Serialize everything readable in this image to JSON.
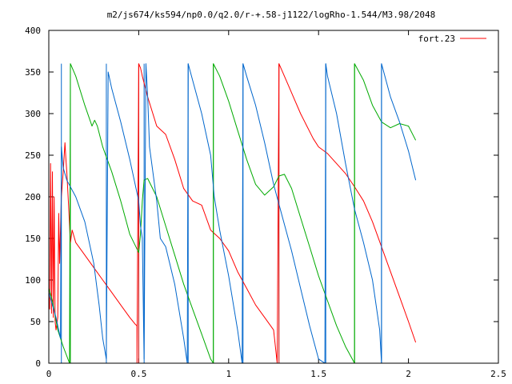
{
  "chart_data": {
    "type": "line",
    "title": "m2/js674/ks594/np0.0/q2.0/r-+.58-j1122/logRho-1.544/M3.98/2048",
    "xlim": [
      0,
      2.5
    ],
    "ylim": [
      0,
      400
    ],
    "x_ticks": [
      "0",
      "0.5",
      "1",
      "1.5",
      "2",
      "2.5"
    ],
    "x_tick_values": [
      0,
      0.5,
      1,
      1.5,
      2,
      2.5
    ],
    "y_ticks": [
      "0",
      "50",
      "100",
      "150",
      "200",
      "250",
      "300",
      "350",
      "400"
    ],
    "y_tick_values": [
      0,
      50,
      100,
      150,
      200,
      250,
      300,
      350,
      400
    ],
    "grid": false,
    "legend_position": "top-right",
    "legend": [
      "fort.23"
    ],
    "series": [
      {
        "name": "fort.23",
        "color": "#ff0000",
        "points": [
          [
            0.0,
            80
          ],
          [
            0.005,
            65
          ],
          [
            0.01,
            240
          ],
          [
            0.015,
            60
          ],
          [
            0.02,
            230
          ],
          [
            0.025,
            55
          ],
          [
            0.03,
            200
          ],
          [
            0.035,
            50
          ],
          [
            0.04,
            40
          ],
          [
            0.05,
            55
          ],
          [
            0.055,
            180
          ],
          [
            0.06,
            120
          ],
          [
            0.065,
            160
          ],
          [
            0.07,
            200
          ],
          [
            0.08,
            230
          ],
          [
            0.09,
            265
          ],
          [
            0.095,
            245
          ],
          [
            0.1,
            230
          ],
          [
            0.11,
            190
          ],
          [
            0.12,
            145
          ],
          [
            0.13,
            160
          ],
          [
            0.15,
            145
          ],
          [
            0.2,
            130
          ],
          [
            0.25,
            115
          ],
          [
            0.3,
            100
          ],
          [
            0.35,
            85
          ],
          [
            0.4,
            70
          ],
          [
            0.45,
            55
          ],
          [
            0.48,
            47
          ],
          [
            0.49,
            45
          ],
          [
            0.49,
            0
          ],
          [
            0.5,
            360
          ],
          [
            0.51,
            355
          ],
          [
            0.52,
            345
          ],
          [
            0.55,
            320
          ],
          [
            0.6,
            285
          ],
          [
            0.65,
            275
          ],
          [
            0.7,
            245
          ],
          [
            0.75,
            210
          ],
          [
            0.8,
            195
          ],
          [
            0.85,
            190
          ],
          [
            0.9,
            160
          ],
          [
            0.95,
            150
          ],
          [
            1.0,
            135
          ],
          [
            1.05,
            110
          ],
          [
            1.1,
            90
          ],
          [
            1.15,
            70
          ],
          [
            1.2,
            55
          ],
          [
            1.25,
            40
          ],
          [
            1.27,
            0
          ],
          [
            1.28,
            360
          ],
          [
            1.33,
            335
          ],
          [
            1.4,
            300
          ],
          [
            1.47,
            270
          ],
          [
            1.5,
            260
          ],
          [
            1.55,
            252
          ],
          [
            1.6,
            240
          ],
          [
            1.65,
            228
          ],
          [
            1.7,
            212
          ],
          [
            1.75,
            195
          ],
          [
            1.8,
            170
          ],
          [
            1.85,
            140
          ],
          [
            1.9,
            110
          ],
          [
            1.95,
            80
          ],
          [
            2.0,
            50
          ],
          [
            2.04,
            25
          ]
        ]
      },
      {
        "color": "#00aa00",
        "points": [
          [
            0.0,
            90
          ],
          [
            0.02,
            75
          ],
          [
            0.05,
            40
          ],
          [
            0.08,
            20
          ],
          [
            0.115,
            0
          ],
          [
            0.12,
            360
          ],
          [
            0.15,
            345
          ],
          [
            0.2,
            310
          ],
          [
            0.24,
            285
          ],
          [
            0.255,
            292
          ],
          [
            0.27,
            285
          ],
          [
            0.3,
            260
          ],
          [
            0.35,
            230
          ],
          [
            0.4,
            195
          ],
          [
            0.45,
            155
          ],
          [
            0.5,
            133
          ],
          [
            0.51,
            155
          ],
          [
            0.52,
            195
          ],
          [
            0.53,
            220
          ],
          [
            0.55,
            222
          ],
          [
            0.6,
            200
          ],
          [
            0.65,
            165
          ],
          [
            0.7,
            130
          ],
          [
            0.75,
            95
          ],
          [
            0.8,
            65
          ],
          [
            0.85,
            35
          ],
          [
            0.9,
            5
          ],
          [
            0.915,
            0
          ],
          [
            0.915,
            360
          ],
          [
            0.95,
            345
          ],
          [
            1.0,
            315
          ],
          [
            1.05,
            280
          ],
          [
            1.1,
            245
          ],
          [
            1.15,
            215
          ],
          [
            1.2,
            202
          ],
          [
            1.25,
            212
          ],
          [
            1.28,
            225
          ],
          [
            1.31,
            227
          ],
          [
            1.35,
            210
          ],
          [
            1.4,
            175
          ],
          [
            1.45,
            140
          ],
          [
            1.5,
            105
          ],
          [
            1.55,
            75
          ],
          [
            1.6,
            45
          ],
          [
            1.65,
            20
          ],
          [
            1.7,
            0
          ],
          [
            1.7,
            360
          ],
          [
            1.75,
            340
          ],
          [
            1.8,
            310
          ],
          [
            1.85,
            290
          ],
          [
            1.9,
            283
          ],
          [
            1.95,
            288
          ],
          [
            2.0,
            285
          ],
          [
            2.04,
            268
          ]
        ]
      },
      {
        "color": "#0066cc",
        "points": [
          [
            0.0,
            85
          ],
          [
            0.02,
            70
          ],
          [
            0.04,
            55
          ],
          [
            0.065,
            30
          ],
          [
            0.07,
            260
          ],
          [
            0.08,
            235
          ],
          [
            0.1,
            220
          ],
          [
            0.15,
            200
          ],
          [
            0.2,
            170
          ],
          [
            0.25,
            120
          ],
          [
            0.28,
            70
          ],
          [
            0.3,
            30
          ],
          [
            0.32,
            5
          ],
          [
            0.33,
            350
          ],
          [
            0.35,
            330
          ],
          [
            0.4,
            290
          ],
          [
            0.45,
            245
          ],
          [
            0.5,
            195
          ],
          [
            0.51,
            165
          ],
          [
            0.52,
            150
          ],
          [
            0.53,
            5
          ],
          [
            0.54,
            360
          ],
          [
            0.55,
            320
          ],
          [
            0.56,
            260
          ],
          [
            0.6,
            195
          ],
          [
            0.62,
            150
          ],
          [
            0.65,
            140
          ],
          [
            0.7,
            95
          ],
          [
            0.75,
            30
          ],
          [
            0.77,
            0
          ],
          [
            0.775,
            360
          ],
          [
            0.8,
            340
          ],
          [
            0.85,
            300
          ],
          [
            0.9,
            250
          ],
          [
            0.92,
            200
          ],
          [
            0.95,
            160
          ],
          [
            1.0,
            105
          ],
          [
            1.05,
            40
          ],
          [
            1.075,
            0
          ],
          [
            1.08,
            360
          ],
          [
            1.1,
            345
          ],
          [
            1.15,
            310
          ],
          [
            1.2,
            265
          ],
          [
            1.25,
            215
          ],
          [
            1.3,
            175
          ],
          [
            1.35,
            135
          ],
          [
            1.4,
            90
          ],
          [
            1.45,
            45
          ],
          [
            1.5,
            5
          ],
          [
            1.535,
            0
          ],
          [
            1.54,
            360
          ],
          [
            1.55,
            345
          ],
          [
            1.6,
            300
          ],
          [
            1.65,
            240
          ],
          [
            1.7,
            185
          ],
          [
            1.75,
            145
          ],
          [
            1.8,
            100
          ],
          [
            1.84,
            40
          ],
          [
            1.85,
            0
          ],
          [
            1.85,
            360
          ],
          [
            1.9,
            320
          ],
          [
            1.95,
            290
          ],
          [
            2.0,
            255
          ],
          [
            2.04,
            220
          ]
        ]
      }
    ],
    "verticals": [
      {
        "x": 0.07,
        "color": "#0066cc"
      },
      {
        "x": 0.12,
        "color": "#00aa00"
      },
      {
        "x": 0.32,
        "color": "#0066cc"
      },
      {
        "x": 0.5,
        "color": "#cc0000"
      },
      {
        "x": 0.53,
        "color": "#0066cc"
      },
      {
        "x": 0.775,
        "color": "#0066cc"
      },
      {
        "x": 0.915,
        "color": "#00aa00"
      },
      {
        "x": 1.08,
        "color": "#0066cc"
      },
      {
        "x": 1.28,
        "color": "#cc0000"
      },
      {
        "x": 1.54,
        "color": "#0066cc"
      },
      {
        "x": 1.7,
        "color": "#00aa00"
      },
      {
        "x": 1.85,
        "color": "#0066cc"
      }
    ]
  }
}
